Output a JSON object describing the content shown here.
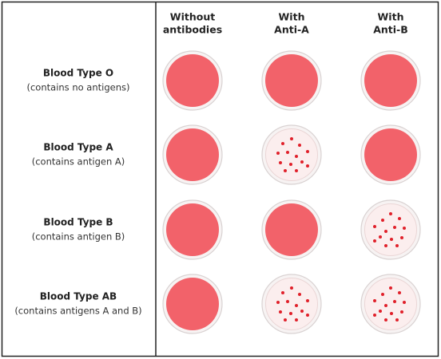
{
  "header": {
    "columns": [
      [
        "Without",
        "antibodies"
      ],
      [
        "With",
        "Anti-A"
      ],
      [
        "With",
        "Anti-B"
      ]
    ]
  },
  "rows": [
    {
      "title": "Blood Type O",
      "subtitle": "(contains no antigens)"
    },
    {
      "title": "Blood Type A",
      "subtitle": "(contains antigen A)"
    },
    {
      "title": "Blood Type B",
      "subtitle": "(contains antigen B)"
    },
    {
      "title": "Blood Type AB",
      "subtitle": "(contains antigens A and B)"
    }
  ]
}
